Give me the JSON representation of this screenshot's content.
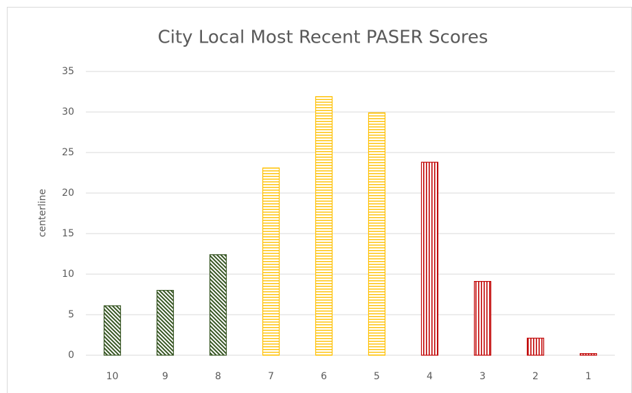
{
  "chart_data": {
    "type": "bar",
    "title": "City Local Most Recent PASER Scores",
    "y_label": "centerline",
    "categories": [
      "10",
      "9",
      "8",
      "7",
      "6",
      "5",
      "4",
      "3",
      "2",
      "1"
    ],
    "values": [
      6.1,
      8.0,
      12.4,
      23.1,
      31.9,
      29.9,
      23.8,
      9.1,
      2.1,
      0.2
    ],
    "colors": [
      "#375623",
      "#375623",
      "#375623",
      "#ffc000",
      "#ffc000",
      "#ffc000",
      "#c00000",
      "#c00000",
      "#c00000",
      "#c00000"
    ],
    "patterns": [
      "diagonal",
      "diagonal",
      "diagonal",
      "horizontal",
      "horizontal",
      "horizontal",
      "vertical",
      "vertical",
      "vertical",
      "vertical"
    ],
    "ylim": [
      0,
      35
    ],
    "yticks": [
      0,
      5,
      10,
      15,
      20,
      25,
      30,
      35
    ],
    "grid": true
  }
}
